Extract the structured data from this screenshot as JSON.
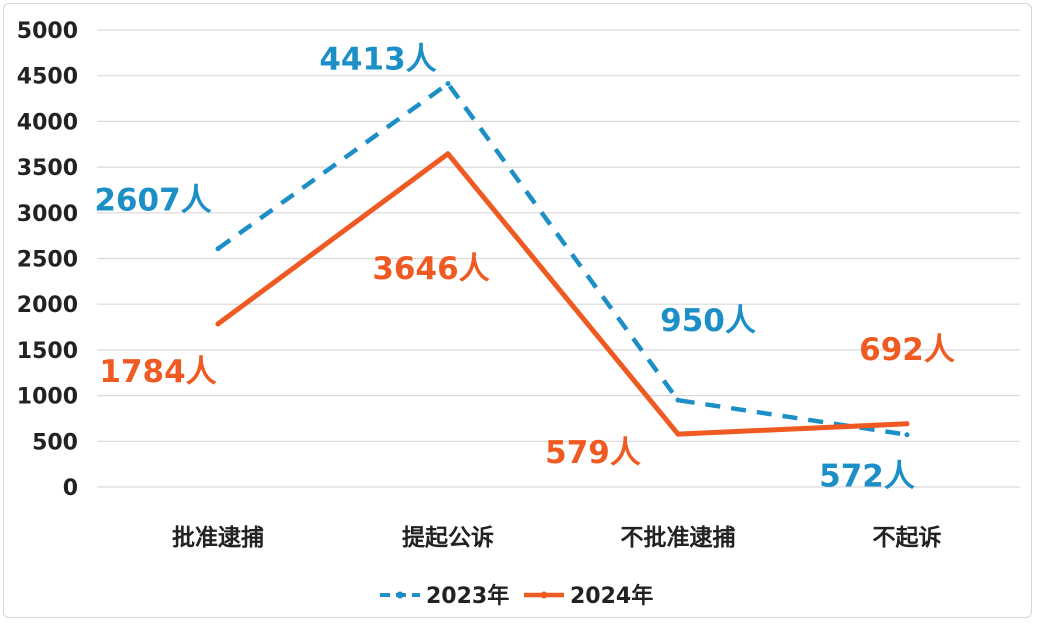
{
  "chart_data": {
    "type": "line",
    "categories": [
      "批准逮捕",
      "提起公诉",
      "不批准逮捕",
      "不起诉"
    ],
    "series": [
      {
        "name": "2023年",
        "values": [
          2607,
          4413,
          950,
          572
        ],
        "labels": [
          "2607人",
          "4413人",
          "950人",
          "572人"
        ],
        "color": "#1b8fc6",
        "style": "dashed"
      },
      {
        "name": "2024年",
        "values": [
          1784,
          3646,
          579,
          692
        ],
        "labels": [
          "1784人",
          "3646人",
          "579人",
          "692人"
        ],
        "color": "#ee5a22",
        "style": "solid"
      }
    ],
    "yticks": [
      "5000",
      "4500",
      "4000",
      "3500",
      "3000",
      "2500",
      "2000",
      "1500",
      "1000",
      "500",
      "0"
    ],
    "ylim": [
      0,
      5000
    ],
    "grid": true,
    "legend_position": "bottom"
  }
}
